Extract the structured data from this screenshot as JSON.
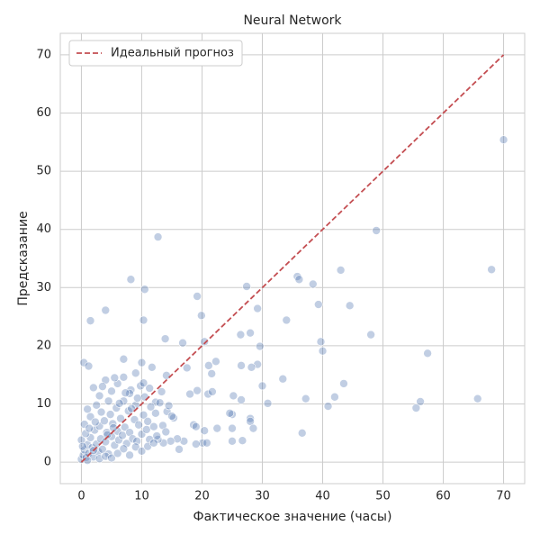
{
  "chart_data": {
    "type": "scatter",
    "title": "Neural Network",
    "x_label": "Фактическое значение (часы)",
    "y_label": "Предсказание",
    "color": "#4c72b0",
    "x": [
      70,
      68,
      65.7,
      57.4,
      56.2,
      55.5,
      48.9,
      48,
      44.5,
      43,
      43.5,
      42,
      40.9,
      39.7,
      40,
      39.3,
      38.4,
      35.8,
      36.1,
      37.2,
      36.6,
      34,
      33.4,
      30.9,
      30,
      29.6,
      29.2,
      27.4,
      28,
      26.4,
      29.2,
      28.2,
      26.5,
      26.5,
      25,
      24.6,
      25,
      25,
      26.7,
      28,
      28,
      28.5,
      25.2,
      22.3,
      21.6,
      21.1,
      20.4,
      19.9,
      19.2,
      17.5,
      16.8,
      13.9,
      12.7,
      10.5,
      10.3,
      8.2,
      4,
      1.5,
      0.4,
      1.2,
      7,
      10,
      21,
      21.7,
      19.2,
      18,
      18.6,
      19,
      20.4,
      22.5,
      20.1,
      20.8,
      19,
      17,
      16.2,
      15.9,
      14.8,
      13.6,
      12.7,
      15.3,
      14.2,
      14.1,
      13.3,
      11.7,
      12.3,
      0,
      0.3,
      0.5,
      0.8,
      1,
      1.2,
      1.5,
      1.8,
      2,
      2.2,
      2.5,
      2.8,
      3,
      3.2,
      3.5,
      3.8,
      4,
      4.2,
      4.5,
      4.8,
      5,
      5.2,
      5.5,
      5.8,
      6,
      6.2,
      6.5,
      6.8,
      7,
      7.2,
      7.5,
      7.8,
      8,
      8.2,
      8.5,
      8.8,
      9,
      9.2,
      9.5,
      9.8,
      10,
      10.3,
      10.5,
      10.8,
      11,
      11.3,
      11.5,
      12,
      12.5,
      13,
      1,
      2,
      3,
      4,
      5,
      6,
      7,
      8,
      9,
      0.5,
      1.5,
      2.5,
      3.5,
      4.5,
      5.5,
      0,
      0.2,
      1,
      2,
      3,
      4,
      5,
      6,
      7,
      8,
      9,
      10,
      11,
      12,
      0.7,
      1.3,
      2.3,
      3.3,
      4.3,
      5.3,
      6.3,
      7.3,
      8.3,
      9.3,
      10.3,
      11.3,
      12.3,
      13.5,
      14,
      14.5,
      15
    ],
    "values": [
      55.4,
      33.1,
      10.9,
      18.7,
      10.4,
      9.3,
      39.8,
      21.9,
      26.9,
      33,
      13.5,
      11.2,
      9.6,
      20.7,
      19.1,
      27.1,
      30.6,
      31.9,
      31.4,
      10.9,
      5,
      24.4,
      14.3,
      10.1,
      13.1,
      19.9,
      26.4,
      30.2,
      22.2,
      21.9,
      16.8,
      16.3,
      16.6,
      10.7,
      8.2,
      8.4,
      5.8,
      3.6,
      3.7,
      7.5,
      7,
      5.8,
      11.4,
      17.3,
      15.2,
      16.6,
      20.7,
      25.2,
      28.5,
      16.2,
      20.5,
      21.2,
      38.7,
      29.7,
      24.4,
      31.4,
      26.1,
      24.3,
      17.1,
      16.5,
      17.7,
      17.1,
      11.7,
      12.1,
      12.3,
      11.7,
      6.4,
      6.1,
      5.4,
      5.8,
      3.3,
      3.3,
      3.1,
      3.6,
      2.2,
      4,
      3.6,
      3.3,
      3.9,
      7.6,
      8.7,
      14.9,
      12.1,
      16.3,
      10.3,
      0.5,
      1.2,
      2.1,
      0.8,
      3,
      1.5,
      4.2,
      2.5,
      0.9,
      5.5,
      3.1,
      1.8,
      6.2,
      4,
      2.2,
      7.1,
      3.5,
      5.1,
      1.4,
      8.2,
      4.4,
      6.6,
      2.9,
      9.3,
      5.3,
      3.8,
      7.5,
      4.6,
      10.5,
      6,
      3.2,
      8.8,
      5.1,
      12.4,
      4,
      7.3,
      9.8,
      3.6,
      6.4,
      13.1,
      4.8,
      8.1,
      11.2,
      5.6,
      7,
      3.9,
      9.5,
      6.1,
      4.5,
      10.2,
      9.1,
      12.8,
      11.4,
      14.1,
      12.2,
      13.5,
      14.6,
      11.8,
      15.3,
      6.5,
      7.8,
      9.8,
      13,
      10.5,
      14.5,
      3.8,
      2.7,
      0.3,
      2,
      0.6,
      1,
      0.7,
      1.5,
      2.3,
      1.2,
      2.6,
      1.9,
      2.7,
      3.3,
      4.9,
      5.8,
      6.9,
      8.6,
      4.7,
      5.9,
      10.1,
      11.9,
      9.2,
      11,
      13.6,
      12.7,
      8.4,
      6.3,
      5.2,
      9.7,
      7.9
    ],
    "reference_line": {
      "name": "Идеальный прогноз",
      "color": "#c44e52",
      "x": [
        0,
        70
      ],
      "values": [
        0,
        70
      ],
      "dashed": true
    },
    "xlim": [
      -3.5,
      73.5
    ],
    "ylim": [
      -3.7,
      73.7
    ],
    "xticks": [
      0,
      10,
      20,
      30,
      40,
      50,
      60,
      70
    ],
    "yticks": [
      0,
      10,
      20,
      30,
      40,
      50,
      60,
      70
    ],
    "grid": true,
    "legend": "upper left"
  }
}
